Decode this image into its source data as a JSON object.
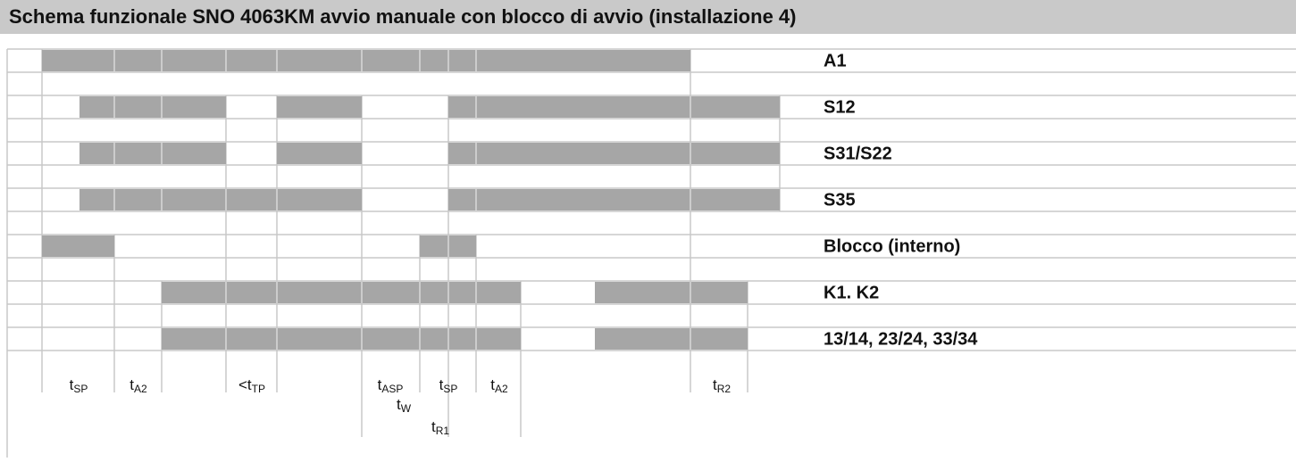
{
  "title": "Schema funzionale SNO 4063KM avvio manuale con blocco di avvio (installazione 4)",
  "signals": [
    "A1",
    "S12",
    "S31/S22",
    "S35",
    "Blocco (interno)",
    "K1. K2",
    "13/14, 23/24, 33/34"
  ],
  "timings": [
    {
      "prefix": "t",
      "sub": "SP"
    },
    {
      "prefix": "t",
      "sub": "A2"
    },
    {
      "prefix": "<t",
      "sub": "TP"
    },
    {
      "prefix": "t",
      "sub": "ASP"
    },
    {
      "prefix": "t",
      "sub": "W"
    },
    {
      "prefix": "t",
      "sub": "SP"
    },
    {
      "prefix": "t",
      "sub": "R1"
    },
    {
      "prefix": "t",
      "sub": "A2"
    },
    {
      "prefix": "t",
      "sub": "R2"
    }
  ]
}
